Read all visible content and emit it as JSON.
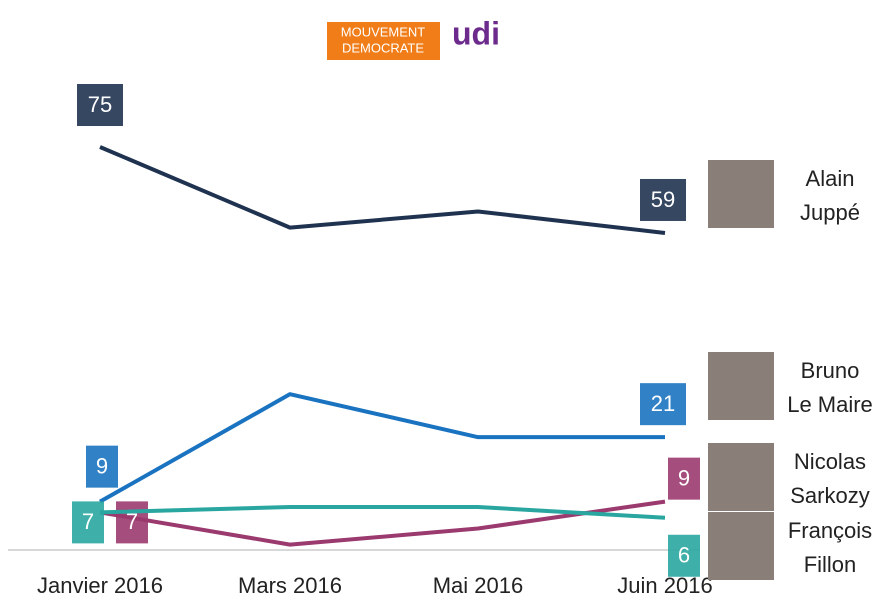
{
  "logos": {
    "modem_line1": "MOUVEMENT",
    "modem_line2": "DEMOCRATE",
    "udi": "udi"
  },
  "chart_data": {
    "type": "line",
    "categories": [
      "Janvier 2016",
      "Mars 2016",
      "Mai 2016",
      "Juin 2016"
    ],
    "ylim": [
      0,
      75
    ],
    "series": [
      {
        "name": "Alain Juppé",
        "color": "#1f3350",
        "values": [
          75,
          60,
          63,
          59
        ]
      },
      {
        "name": "Bruno Le Maire",
        "color": "#1a73c0",
        "values": [
          9,
          29,
          21,
          21
        ]
      },
      {
        "name": "Nicolas Sarkozy",
        "color": "#9b3a6e",
        "values": [
          7,
          1,
          4,
          9
        ]
      },
      {
        "name": "François Fillon",
        "color": "#2aa6a0",
        "values": [
          7,
          8,
          8,
          6
        ]
      }
    ]
  }
}
